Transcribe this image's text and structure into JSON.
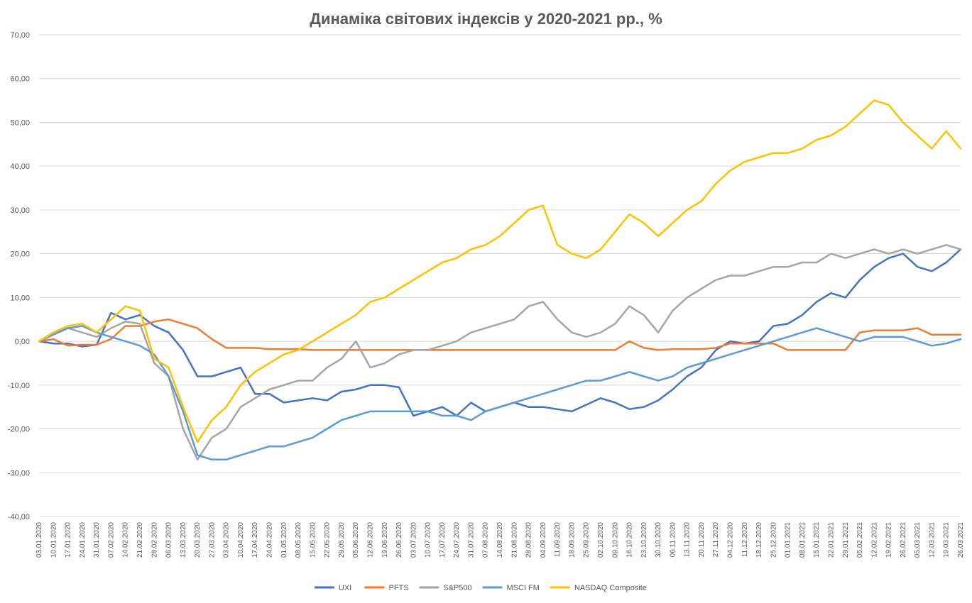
{
  "chart_data": {
    "type": "line",
    "title": "Динаміка світових індексів у 2020-2021 рр., %",
    "xlabel": "",
    "ylabel": "",
    "ylim": [
      -40,
      70
    ],
    "grid": true,
    "legend_position": "bottom",
    "y_ticks": [
      "70,00",
      "60,00",
      "50,00",
      "40,00",
      "30,00",
      "20,00",
      "10,00",
      "0,00",
      "-10,00",
      "-20,00",
      "-30,00",
      "-40,00"
    ],
    "x": [
      "03.01.2020",
      "10.01.2020",
      "17.01.2020",
      "24.01.2020",
      "31.01.2020",
      "07.02.2020",
      "14.02.2020",
      "21.02.2020",
      "28.02.2020",
      "06.03.2020",
      "13.03.2020",
      "20.03.2020",
      "27.03.2020",
      "03.04.2020",
      "10.04.2020",
      "17.04.2020",
      "24.04.2020",
      "01.05.2020",
      "08.05.2020",
      "15.05.2020",
      "22.05.2020",
      "29.05.2020",
      "05.06.2020",
      "12.06.2020",
      "19.06.2020",
      "26.06.2020",
      "03.07.2020",
      "10.07.2020",
      "17.07.2020",
      "24.07.2020",
      "31.07.2020",
      "07.08.2020",
      "14.08.2020",
      "21.08.2020",
      "28.08.2020",
      "04.09.2020",
      "11.09.2020",
      "18.09.2020",
      "25.09.2020",
      "02.10.2020",
      "09.10.2020",
      "16.10.2020",
      "23.10.2020",
      "30.10.2020",
      "06.11.2020",
      "13.11.2020",
      "20.11.2020",
      "27.11.2020",
      "04.12.2020",
      "11.12.2020",
      "18.12.2020",
      "25.12.2020",
      "01.01.2021",
      "08.01.2021",
      "15.01.2021",
      "22.01.2021",
      "29.01.2021",
      "05.02.2021",
      "12.02.2021",
      "19.02.2021",
      "26.02.2021",
      "05.03.2021",
      "12.03.2021",
      "19.03.2021",
      "26.03.2021"
    ],
    "series": [
      {
        "name": "UXI",
        "color": "#4472C4",
        "values": [
          0,
          -0.5,
          -0.5,
          -1.2,
          -0.8,
          6.5,
          5,
          6,
          3.5,
          2,
          -2,
          -8,
          -8,
          -7,
          -6,
          -12,
          -12,
          -14,
          -13.5,
          -13,
          -13.5,
          -11.5,
          -11,
          -10,
          -10,
          -10.5,
          -17,
          -16,
          -15,
          -17,
          -14,
          -16,
          -15,
          -14,
          -15,
          -15,
          -15.5,
          -16,
          -14.5,
          -13,
          -14,
          -15.5,
          -15,
          -13.5,
          -11,
          -8,
          -6,
          -2,
          0,
          -0.5,
          0,
          3.5,
          4,
          6,
          9,
          11,
          10,
          14,
          17,
          19,
          20,
          17,
          16,
          18,
          21
        ]
      },
      {
        "name": "PFTS",
        "color": "#ED7D31",
        "values": [
          0,
          0.5,
          -1,
          -0.8,
          -0.8,
          0.5,
          3.5,
          3.5,
          4.5,
          5,
          4,
          3,
          0.5,
          -1.5,
          -1.5,
          -1.5,
          -1.8,
          -1.8,
          -1.8,
          -2,
          -2,
          -2,
          -2,
          -2,
          -2,
          -2,
          -2,
          -2,
          -2,
          -2,
          -2,
          -2,
          -2,
          -2,
          -2,
          -2,
          -2,
          -2,
          -2,
          -2,
          -2,
          0,
          -1.5,
          -2,
          -1.8,
          -1.8,
          -1.8,
          -1.5,
          -0.5,
          -0.5,
          -0.5,
          -0.5,
          -2,
          -2,
          -2,
          -2,
          -2,
          2,
          2.5,
          2.5,
          2.5,
          3,
          1.5,
          1.5,
          1.5
        ]
      },
      {
        "name": "S&P500",
        "color": "#A5A5A5",
        "values": [
          0,
          2,
          3,
          2,
          1,
          3,
          4.5,
          4,
          -5,
          -8,
          -20,
          -27,
          -22,
          -20,
          -15,
          -13,
          -11,
          -10,
          -9,
          -9,
          -6,
          -4,
          0,
          -6,
          -5,
          -3,
          -2,
          -2,
          -1,
          0,
          2,
          3,
          4,
          5,
          8,
          9,
          5,
          2,
          1,
          2,
          4,
          8,
          6,
          2,
          7,
          10,
          12,
          14,
          15,
          15,
          16,
          17,
          17,
          18,
          18,
          20,
          19,
          20,
          21,
          20,
          21,
          20,
          21,
          22,
          21
        ]
      },
      {
        "name": "MSCI FM",
        "color": "#5B9BD5",
        "values": [
          0,
          1.5,
          3,
          3.5,
          2,
          1,
          0,
          -1,
          -3,
          -8,
          -16,
          -26,
          -27,
          -27,
          -26,
          -25,
          -24,
          -24,
          -23,
          -22,
          -20,
          -18,
          -17,
          -16,
          -16,
          -16,
          -16,
          -16,
          -17,
          -17,
          -18,
          -16,
          -15,
          -14,
          -13,
          -12,
          -11,
          -10,
          -9,
          -9,
          -8,
          -7,
          -8,
          -9,
          -8,
          -6,
          -5,
          -4,
          -3,
          -2,
          -1,
          0,
          1,
          2,
          3,
          2,
          1,
          0,
          1,
          1,
          1,
          0,
          -1,
          -0.5,
          0.5
        ]
      },
      {
        "name": "NASDAQ Composite",
        "color": "#FFC000",
        "values": [
          0,
          2,
          3.5,
          4,
          2,
          5,
          8,
          7,
          -4,
          -6,
          -15,
          -23,
          -18,
          -15,
          -10,
          -7,
          -5,
          -3,
          -2,
          0,
          2,
          4,
          6,
          9,
          10,
          12,
          14,
          16,
          18,
          19,
          21,
          22,
          24,
          27,
          30,
          31,
          22,
          20,
          19,
          21,
          25,
          29,
          27,
          24,
          27,
          30,
          32,
          36,
          39,
          41,
          42,
          43,
          43,
          44,
          46,
          47,
          49,
          52,
          55,
          54,
          50,
          47,
          44,
          48,
          44
        ]
      }
    ]
  }
}
